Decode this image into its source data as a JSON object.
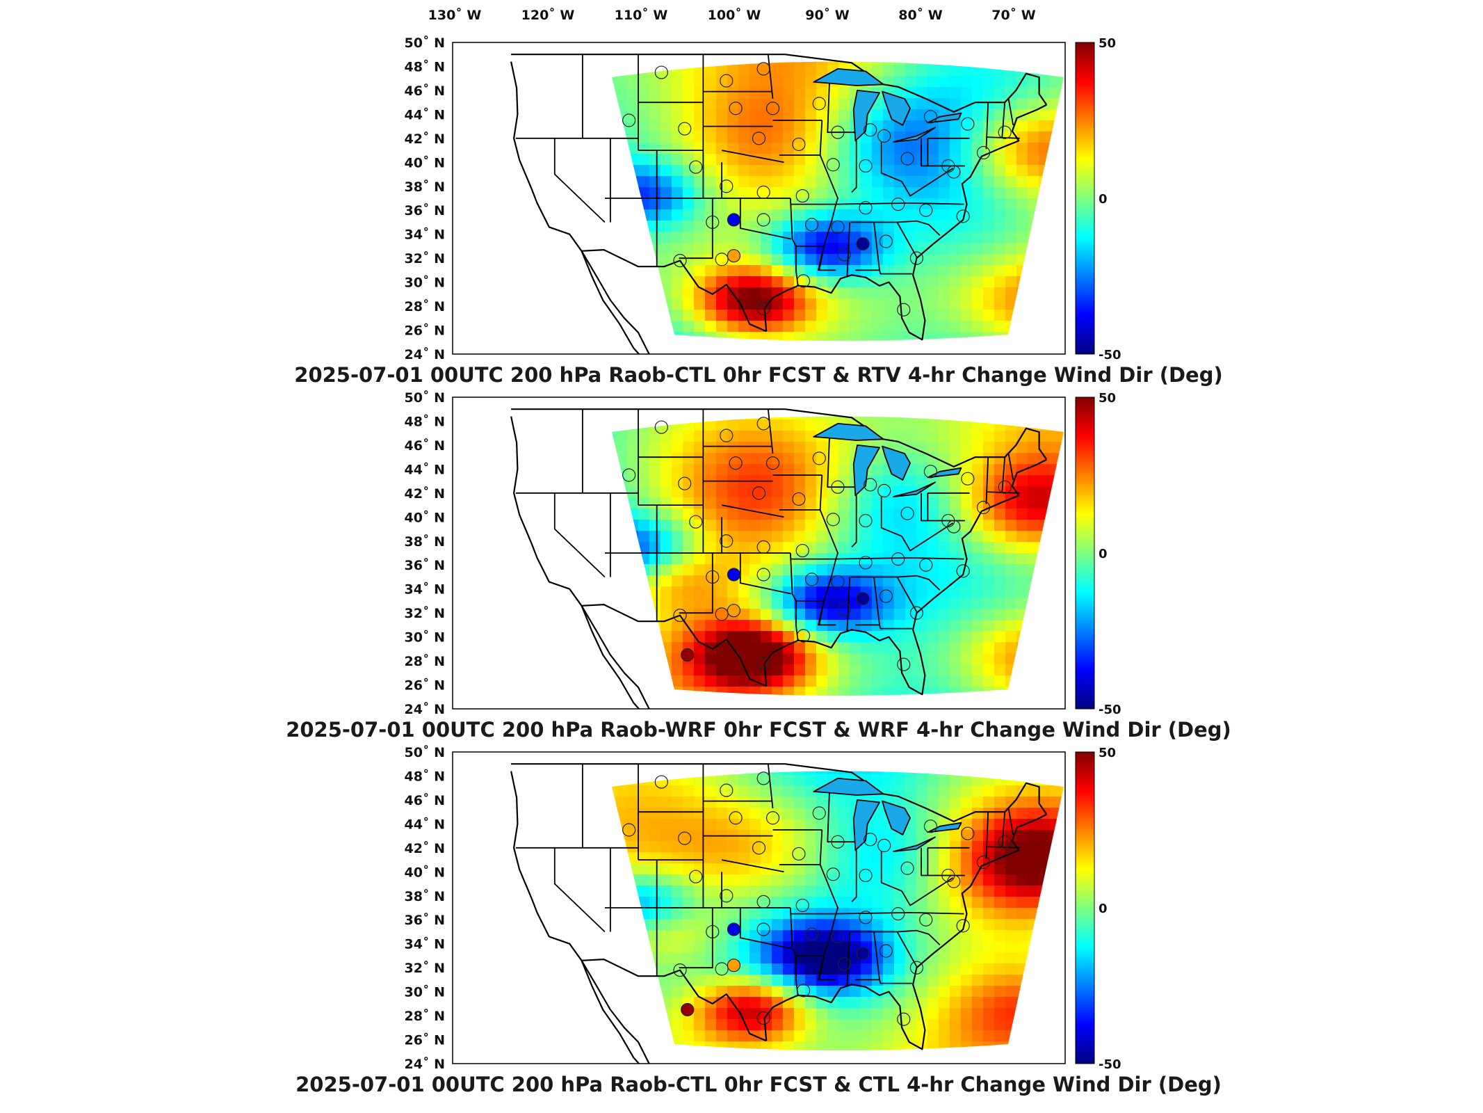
{
  "lon_labels": [
    "130˚ W",
    "120˚ W",
    "110˚ W",
    "100˚ W",
    "90˚ W",
    "80˚ W",
    "70˚ W"
  ],
  "lat_labels": [
    "50˚ N",
    "48˚ N",
    "46˚ N",
    "44˚ N",
    "42˚ N",
    "40˚ N",
    "38˚ N",
    "36˚ N",
    "34˚ N",
    "32˚ N",
    "30˚ N",
    "28˚ N",
    "26˚ N",
    "24˚ N"
  ],
  "colorbar": {
    "max_label": "50",
    "zero_label": "0",
    "min_label": "-50",
    "stops": [
      "#000080",
      "#0000ff",
      "#0080ff",
      "#00ffff",
      "#80ff80",
      "#ffff00",
      "#ff8000",
      "#ff0000",
      "#800000"
    ]
  },
  "colors": {
    "ocean_cyan": "#3ad6d0",
    "land_outline": "#000000",
    "frame": "#000000"
  },
  "chart_data": [
    {
      "type": "heatmap",
      "title": "2025-07-01 00UTC 200 hPa Raob-CTL 0hr FCST & RTV 4-hr Change Wind Dir (Deg)",
      "lon_ticks": [
        -130,
        -120,
        -110,
        -100,
        -90,
        -80,
        -70
      ],
      "lat_ticks": [
        50,
        48,
        46,
        44,
        42,
        40,
        38,
        36,
        34,
        32,
        30,
        28,
        26,
        24
      ],
      "clim": [
        -50,
        50
      ],
      "raob_markers": [
        {
          "lon": -100.7,
          "lat": 35.2,
          "value": -40
        },
        {
          "lon": -100.7,
          "lat": 32.2,
          "value": 22
        },
        {
          "lon": -86.8,
          "lat": 33.2,
          "value": -48
        }
      ]
    },
    {
      "type": "heatmap",
      "title": "2025-07-01 00UTC 200 hPa Raob-WRF 0hr FCST & WRF 4-hr Change Wind Dir (Deg)",
      "lon_ticks": [
        -130,
        -120,
        -110,
        -100,
        -90,
        -80,
        -70
      ],
      "lat_ticks": [
        50,
        48,
        46,
        44,
        42,
        40,
        38,
        36,
        34,
        32,
        30,
        28,
        26,
        24
      ],
      "clim": [
        -50,
        50
      ],
      "raob_markers": [
        {
          "lon": -100.7,
          "lat": 35.2,
          "value": -40
        },
        {
          "lon": -100.7,
          "lat": 32.2,
          "value": 22
        },
        {
          "lon": -86.8,
          "lat": 33.2,
          "value": -48
        },
        {
          "lon": -105.7,
          "lat": 28.5,
          "value": 48
        }
      ]
    },
    {
      "type": "heatmap",
      "title": "2025-07-01 00UTC 200 hPa Raob-CTL 0hr FCST & CTL 4-hr Change Wind Dir (Deg)",
      "lon_ticks": [
        -130,
        -120,
        -110,
        -100,
        -90,
        -80,
        -70
      ],
      "lat_ticks": [
        50,
        48,
        46,
        44,
        42,
        40,
        38,
        36,
        34,
        32,
        30,
        28,
        26,
        24
      ],
      "clim": [
        -50,
        50
      ],
      "raob_markers": [
        {
          "lon": -100.7,
          "lat": 35.2,
          "value": -40
        },
        {
          "lon": -100.7,
          "lat": 32.2,
          "value": 22
        },
        {
          "lon": -86.8,
          "lat": 33.2,
          "value": -48
        },
        {
          "lon": -105.7,
          "lat": 28.5,
          "value": 48
        }
      ]
    }
  ]
}
